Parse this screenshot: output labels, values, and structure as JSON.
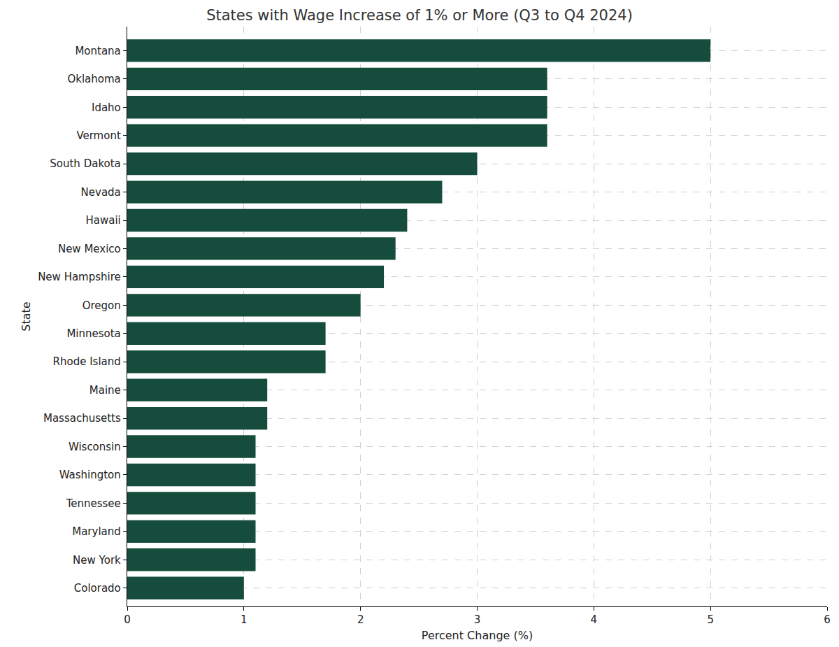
{
  "chart_data": {
    "type": "bar",
    "orientation": "horizontal",
    "title": "States with Wage Increase of 1% or More (Q3 to Q4 2024)",
    "x_label": "Percent Change (%)",
    "y_label": "State",
    "categories": [
      "Montana",
      "Oklahoma",
      "Idaho",
      "Vermont",
      "South Dakota",
      "Nevada",
      "Hawaii",
      "New Mexico",
      "New Hampshire",
      "Oregon",
      "Minnesota",
      "Rhode Island",
      "Maine",
      "Massachusetts",
      "Wisconsin",
      "Washington",
      "Tennessee",
      "Maryland",
      "New York",
      "Colorado"
    ],
    "values": [
      5.0,
      3.6,
      3.6,
      3.6,
      3.0,
      2.7,
      2.4,
      2.3,
      2.2,
      2.0,
      1.7,
      1.7,
      1.2,
      1.2,
      1.1,
      1.1,
      1.1,
      1.1,
      1.1,
      1.0
    ],
    "color": "#154c3c",
    "xlim": [
      0,
      6
    ],
    "xticks": [
      0,
      1,
      2,
      3,
      4,
      5,
      6
    ],
    "grid": true
  }
}
